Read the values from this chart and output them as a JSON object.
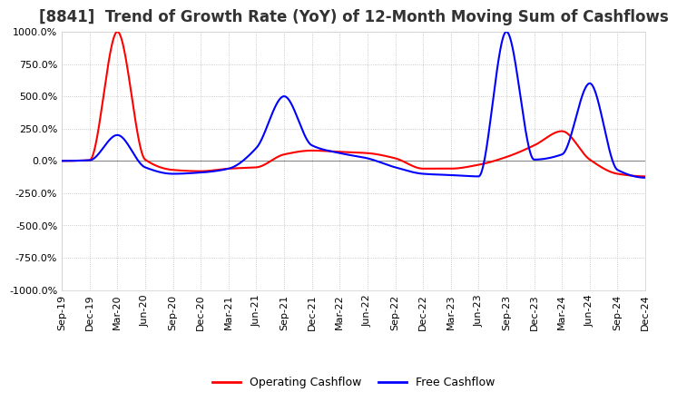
{
  "title": "[8841]  Trend of Growth Rate (YoY) of 12-Month Moving Sum of Cashflows",
  "title_fontsize": 12,
  "ylim": [
    -1000,
    1000
  ],
  "yticks": [
    -1000,
    -750,
    -500,
    -250,
    0,
    250,
    500,
    750,
    1000
  ],
  "background_color": "#ffffff",
  "grid_color": "#bbbbbb",
  "operating_color": "#ff0000",
  "free_color": "#0000ff",
  "legend_labels": [
    "Operating Cashflow",
    "Free Cashflow"
  ],
  "x_labels": [
    "Sep-19",
    "Dec-19",
    "Mar-20",
    "Jun-20",
    "Sep-20",
    "Dec-20",
    "Mar-21",
    "Jun-21",
    "Sep-21",
    "Dec-21",
    "Mar-22",
    "Jun-22",
    "Sep-22",
    "Dec-22",
    "Mar-23",
    "Jun-23",
    "Sep-23",
    "Dec-23",
    "Mar-24",
    "Jun-24",
    "Sep-24",
    "Dec-24"
  ],
  "operating_cashflow": [
    0,
    5,
    1000,
    10,
    -70,
    -80,
    -60,
    -50,
    50,
    80,
    70,
    60,
    20,
    -60,
    -60,
    -30,
    30,
    120,
    230,
    10,
    -100,
    -120
  ],
  "free_cashflow": [
    0,
    5,
    200,
    -50,
    -100,
    -90,
    -60,
    100,
    500,
    120,
    60,
    20,
    -50,
    -100,
    -110,
    -120,
    1000,
    10,
    50,
    600,
    -70,
    -130
  ]
}
